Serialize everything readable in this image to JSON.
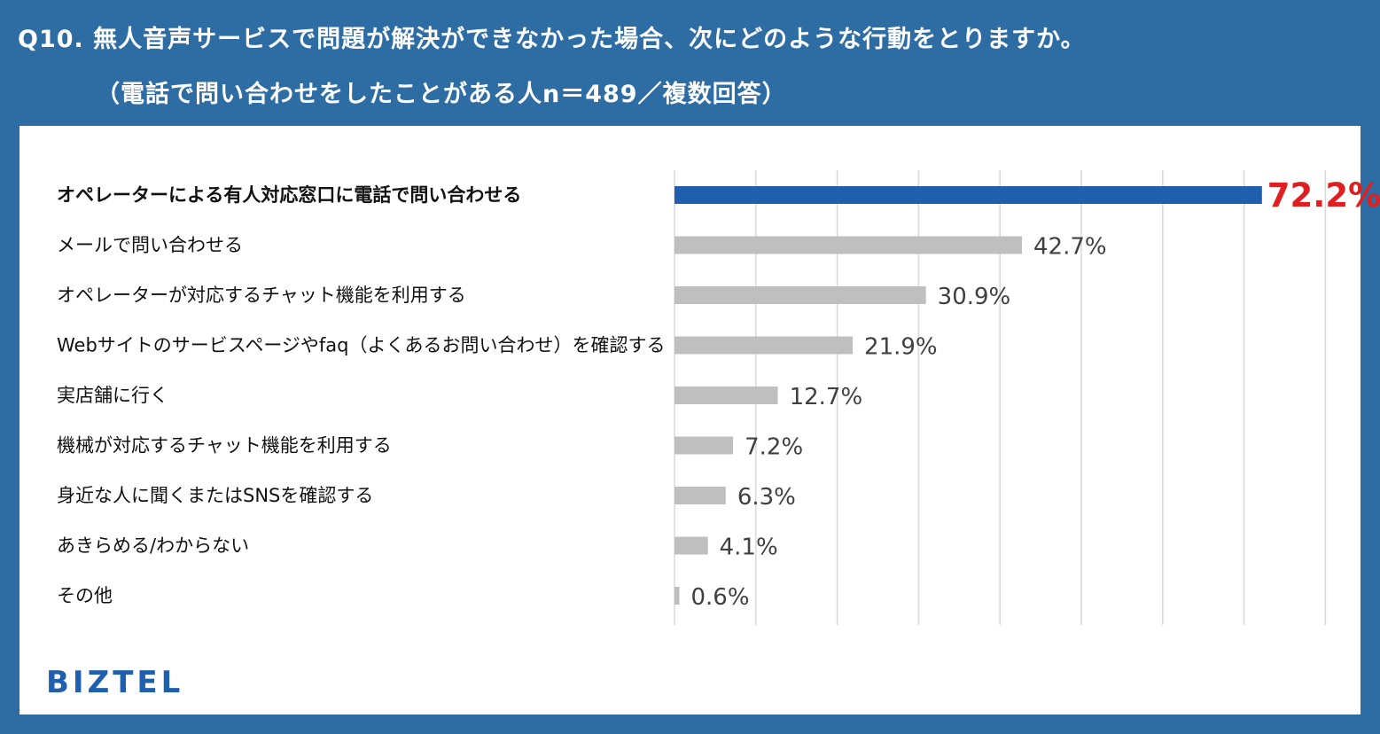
{
  "header": {
    "title": "Q10. 無人音声サービスで問題が解決ができなかった場合、次にどのような行動をとりますか。",
    "subtitle": "（電話で問い合わせをしたことがある人n＝489／複数回答）"
  },
  "brand": {
    "logo_text": "BIZTEL"
  },
  "colors": {
    "background": "#2e6da4",
    "highlight_bar": "#1f5fae",
    "bar": "#bfbfbf",
    "highlight_value": "#e02020",
    "value": "#404040",
    "grid": "#d9d9d9"
  },
  "chart_data": {
    "type": "bar",
    "orientation": "horizontal",
    "categories": [
      "オペレーターによる有人対応窓口に電話で問い合わせる",
      "メールで問い合わせる",
      "オペレーターが対応するチャット機能を利用する",
      "Webサイトのサービスページやfaq（よくあるお問い合わせ）を確認する",
      "実店舗に行く",
      "機械が対応するチャット機能を利用する",
      "身近な人に聞くまたはSNSを確認する",
      "あきらめる/わからない",
      "その他"
    ],
    "values": [
      72.2,
      42.7,
      30.9,
      21.9,
      12.7,
      7.2,
      6.3,
      4.1,
      0.6
    ],
    "value_labels": [
      "72.2%",
      "42.7%",
      "30.9%",
      "21.9%",
      "12.7%",
      "7.2%",
      "6.3%",
      "4.1%",
      "0.6%"
    ],
    "highlight_index": 0,
    "xlim": [
      0,
      80
    ],
    "grid_step": 10,
    "grid": true
  }
}
